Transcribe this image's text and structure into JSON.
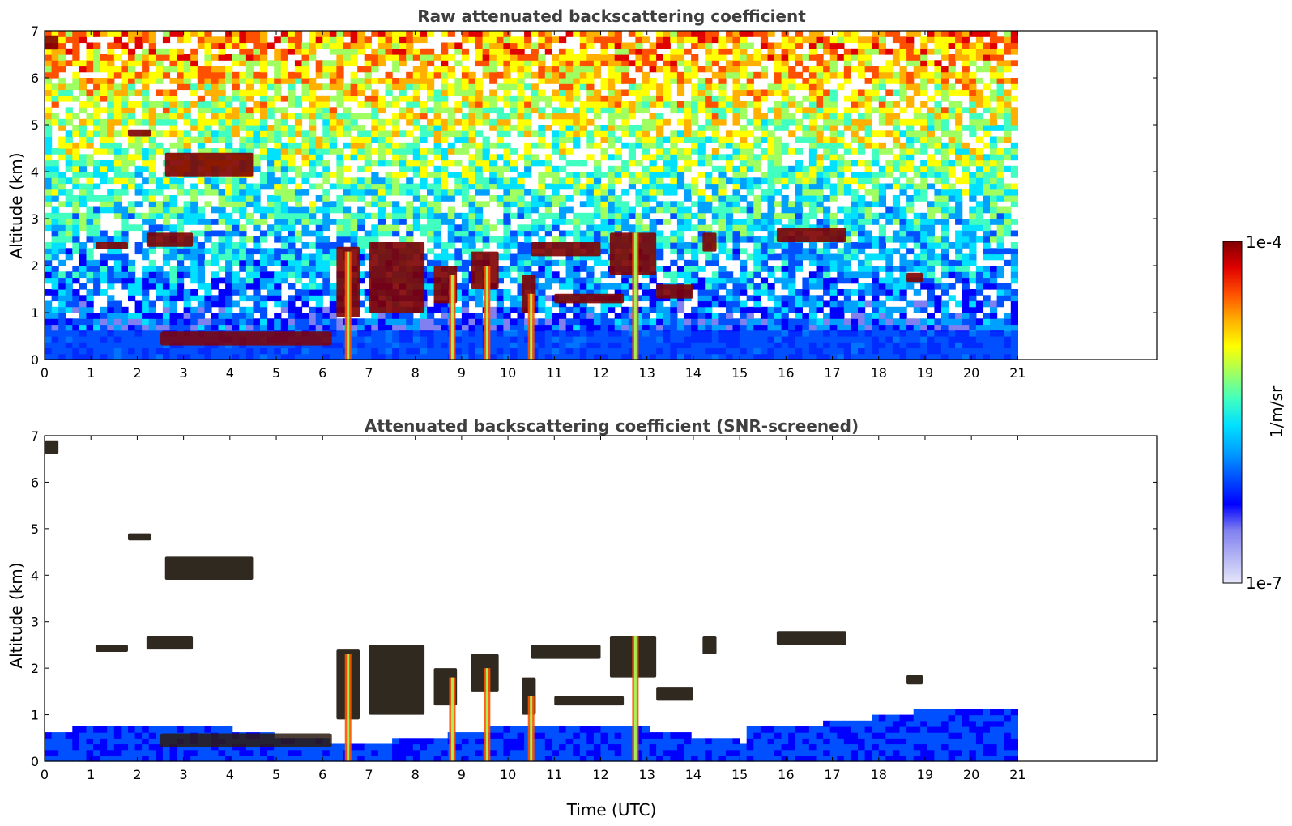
{
  "chart_data": [
    {
      "type": "heatmap",
      "title": "Raw attenuated backscattering coefficient",
      "xlabel": "",
      "ylabel": "Altitude (km)",
      "xlim": [
        0,
        24
      ],
      "ylim": [
        0,
        7
      ],
      "x_ticks": [
        "0",
        "1",
        "2",
        "3",
        "4",
        "5",
        "6",
        "7",
        "8",
        "9",
        "10",
        "11",
        "12",
        "13",
        "14",
        "15",
        "16",
        "17",
        "18",
        "19",
        "20",
        "21"
      ],
      "y_ticks": [
        "0",
        "1",
        "2",
        "3",
        "4",
        "5",
        "6",
        "7"
      ],
      "data_extent_x": [
        0,
        21
      ],
      "screened": false,
      "features": [
        {
          "kind": "boundary_layer",
          "x": [
            0,
            21
          ],
          "top_km": [
            0.6,
            0.6
          ]
        },
        {
          "kind": "aerosol_layer",
          "x": [
            2.5,
            6.2
          ],
          "alt_km": [
            0.3,
            0.6
          ]
        },
        {
          "kind": "cloud",
          "x": [
            0,
            0.3
          ],
          "alt_km": [
            6.6,
            6.9
          ]
        },
        {
          "kind": "cloud",
          "x": [
            1.8,
            2.3
          ],
          "alt_km": [
            4.75,
            4.9
          ]
        },
        {
          "kind": "cloud",
          "x": [
            2.6,
            4.5
          ],
          "alt_km": [
            3.9,
            4.4
          ]
        },
        {
          "kind": "cloud",
          "x": [
            2.2,
            3.2
          ],
          "alt_km": [
            2.4,
            2.7
          ]
        },
        {
          "kind": "cloud",
          "x": [
            1.1,
            1.8
          ],
          "alt_km": [
            2.35,
            2.5
          ]
        },
        {
          "kind": "cloud",
          "x": [
            6.3,
            6.8
          ],
          "alt_km": [
            0.9,
            2.4
          ]
        },
        {
          "kind": "cloud",
          "x": [
            7.0,
            8.2
          ],
          "alt_km": [
            1.0,
            2.5
          ]
        },
        {
          "kind": "cloud",
          "x": [
            8.4,
            8.9
          ],
          "alt_km": [
            1.2,
            2.0
          ]
        },
        {
          "kind": "cloud",
          "x": [
            9.2,
            9.8
          ],
          "alt_km": [
            1.5,
            2.3
          ]
        },
        {
          "kind": "cloud",
          "x": [
            10.3,
            10.6
          ],
          "alt_km": [
            1.0,
            1.8
          ]
        },
        {
          "kind": "cloud",
          "x": [
            10.5,
            12.0
          ],
          "alt_km": [
            2.2,
            2.5
          ]
        },
        {
          "kind": "cloud",
          "x": [
            11.0,
            12.5
          ],
          "alt_km": [
            1.2,
            1.4
          ]
        },
        {
          "kind": "cloud",
          "x": [
            12.2,
            13.2
          ],
          "alt_km": [
            1.8,
            2.7
          ]
        },
        {
          "kind": "cloud",
          "x": [
            13.2,
            14.0
          ],
          "alt_km": [
            1.3,
            1.6
          ]
        },
        {
          "kind": "cloud",
          "x": [
            14.2,
            14.5
          ],
          "alt_km": [
            2.3,
            2.7
          ]
        },
        {
          "kind": "cloud",
          "x": [
            15.8,
            17.3
          ],
          "alt_km": [
            2.5,
            2.8
          ]
        },
        {
          "kind": "cloud",
          "x": [
            18.6,
            18.95
          ],
          "alt_km": [
            1.65,
            1.85
          ]
        },
        {
          "kind": "precip_column",
          "x": 6.55,
          "alt_km": [
            0,
            2.3
          ]
        },
        {
          "kind": "precip_column",
          "x": 8.8,
          "alt_km": [
            0,
            1.8
          ]
        },
        {
          "kind": "precip_column",
          "x": 9.55,
          "alt_km": [
            0,
            2.0
          ]
        },
        {
          "kind": "precip_column",
          "x": 10.5,
          "alt_km": [
            0,
            1.4
          ]
        },
        {
          "kind": "precip_column",
          "x": 12.75,
          "alt_km": [
            0,
            2.7
          ]
        }
      ]
    },
    {
      "type": "heatmap",
      "title": "Attenuated backscattering coefficient (SNR-screened)",
      "xlabel": "Time (UTC)",
      "ylabel": "Altitude (km)",
      "xlim": [
        0,
        24
      ],
      "ylim": [
        0,
        7
      ],
      "x_ticks": [
        "0",
        "1",
        "2",
        "3",
        "4",
        "5",
        "6",
        "7",
        "8",
        "9",
        "10",
        "11",
        "12",
        "13",
        "14",
        "15",
        "16",
        "17",
        "18",
        "19",
        "20",
        "21"
      ],
      "y_ticks": [
        "0",
        "1",
        "2",
        "3",
        "4",
        "5",
        "6",
        "7"
      ],
      "data_extent_x": [
        0,
        21
      ],
      "screened": true
    }
  ],
  "colorbar": {
    "label": "1/m/sr",
    "max_label": "1e-4",
    "min_label": "1e-7",
    "scale": "log",
    "range": [
      1e-07,
      0.0001
    ],
    "colors": [
      "#e6e6fa",
      "#b4b4f5",
      "#8080f0",
      "#0000ff",
      "#0050ff",
      "#00a0ff",
      "#00e0ff",
      "#40ffc0",
      "#a0ff60",
      "#ffff00",
      "#ffb000",
      "#ff5000",
      "#e00000",
      "#800000"
    ]
  }
}
